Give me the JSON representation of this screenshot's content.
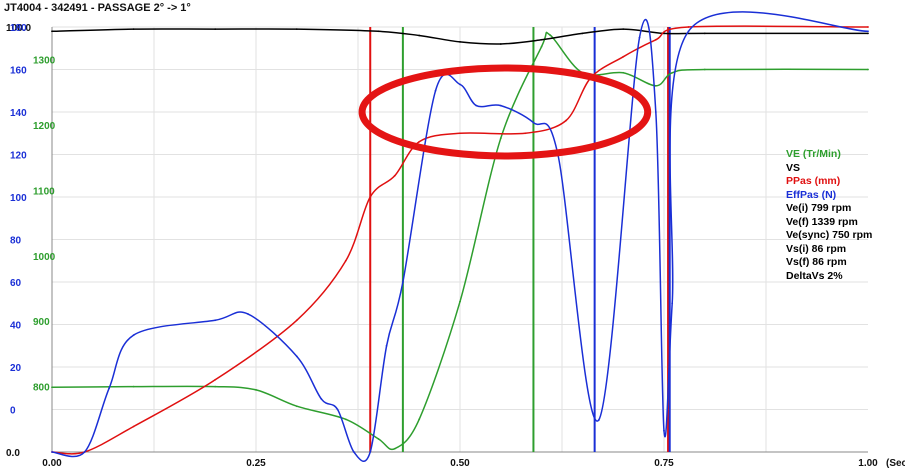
{
  "title": "JT4004 - 342491 - PASSAGE 2° -> 1°",
  "colors": {
    "VE": "#2e9e2e",
    "VS": "#000000",
    "PPas": "#e01010",
    "EffPas": "#1a2fd6",
    "grid": "#e2e2e2",
    "highlight": "#e41414"
  },
  "chart_data": {
    "type": "line",
    "xlabel": "(Sec)",
    "xlim": [
      0,
      1
    ],
    "x_ticks": [
      "0.00",
      "0.25",
      "0.50",
      "0.75",
      "1.00"
    ],
    "y_axes": [
      {
        "name": "PPas",
        "color": "#111111",
        "ticks": [
          "100.0",
          "0.0"
        ],
        "range": [
          0,
          100
        ]
      },
      {
        "name": "VS",
        "color": "#1a2fd6",
        "ticks": [
          "180",
          "160",
          "140",
          "120",
          "100",
          "80",
          "60",
          "40",
          "20",
          "0"
        ],
        "range": [
          -20,
          180
        ]
      },
      {
        "name": "VE",
        "color": "#2e9e2e",
        "ticks": [
          "1300",
          "1200",
          "1100",
          "1000",
          "900",
          "800"
        ],
        "range": [
          700,
          1350
        ]
      }
    ],
    "series": [
      {
        "name": "VE (Tr/Min)",
        "color": "#2e9e2e",
        "axis": "VE",
        "x": [
          0.0,
          0.1,
          0.2,
          0.25,
          0.3,
          0.36,
          0.4,
          0.42,
          0.45,
          0.5,
          0.55,
          0.6,
          0.61,
          0.65,
          0.7,
          0.74,
          0.76,
          0.8,
          1.0
        ],
        "y": [
          799,
          800,
          800,
          795,
          770,
          750,
          720,
          705,
          750,
          930,
          1180,
          1320,
          1338,
          1280,
          1280,
          1260,
          1280,
          1285,
          1285
        ]
      },
      {
        "name": "VS",
        "color": "#000000",
        "axis": "VS",
        "x": [
          0.0,
          0.1,
          0.2,
          0.3,
          0.4,
          0.45,
          0.5,
          0.55,
          0.6,
          0.65,
          0.7,
          0.75,
          0.8,
          1.0
        ],
        "y": [
          178,
          179,
          179,
          179,
          178,
          176,
          173,
          172,
          174,
          177,
          179,
          177,
          177,
          177
        ]
      },
      {
        "name": "PPas (mm)",
        "color": "#e01010",
        "axis": "PPas",
        "x": [
          0.0,
          0.04,
          0.1,
          0.2,
          0.3,
          0.36,
          0.39,
          0.42,
          0.45,
          0.5,
          0.58,
          0.63,
          0.66,
          0.7,
          0.74,
          0.78,
          1.0
        ],
        "y": [
          0,
          0,
          6,
          17,
          31,
          45,
          60,
          65,
          73,
          75,
          75,
          78,
          88,
          93,
          97,
          100,
          100
        ]
      },
      {
        "name": "EffPas (N)",
        "color": "#1a2fd6",
        "axis": "VS",
        "x": [
          0.0,
          0.04,
          0.07,
          0.1,
          0.2,
          0.24,
          0.3,
          0.33,
          0.35,
          0.37,
          0.39,
          0.41,
          0.43,
          0.47,
          0.5,
          0.52,
          0.55,
          0.59,
          0.62,
          0.67,
          0.72,
          0.74,
          0.75,
          0.76,
          0.78,
          1.0
        ],
        "y": [
          -20,
          -20,
          10,
          35,
          42,
          45,
          25,
          5,
          0,
          -20,
          -20,
          30,
          60,
          150,
          153,
          143,
          143,
          135,
          120,
          -5,
          175,
          140,
          -10,
          50,
          178,
          178
        ]
      }
    ],
    "markers": [
      {
        "x": 0.39,
        "color": "#e01010"
      },
      {
        "x": 0.43,
        "color": "#2e9e2e"
      },
      {
        "x": 0.59,
        "color": "#2e9e2e"
      },
      {
        "x": 0.665,
        "color": "#1a2fd6"
      },
      {
        "x": 0.755,
        "color": "#e01010"
      },
      {
        "x": 0.757,
        "color": "#1a2fd6"
      }
    ],
    "grid": true,
    "legend_position": "right",
    "legend": [
      {
        "text": "VE (Tr/Min)",
        "color": "#2e9e2e"
      },
      {
        "text": "VS",
        "color": "#000000"
      },
      {
        "text": "PPas (mm)",
        "color": "#e01010"
      },
      {
        "text": "EffPas (N)",
        "color": "#1a2fd6"
      },
      {
        "text": "Ve(i) 799 rpm",
        "color": "#000000"
      },
      {
        "text": "Ve(f) 1339 rpm",
        "color": "#000000"
      },
      {
        "text": "Ve(sync) 750 rpm",
        "color": "#000000"
      },
      {
        "text": "Vs(i) 86 rpm",
        "color": "#000000"
      },
      {
        "text": "Vs(f) 86 rpm",
        "color": "#000000"
      },
      {
        "text": "DeltaVs 2%",
        "color": "#000000"
      }
    ]
  }
}
